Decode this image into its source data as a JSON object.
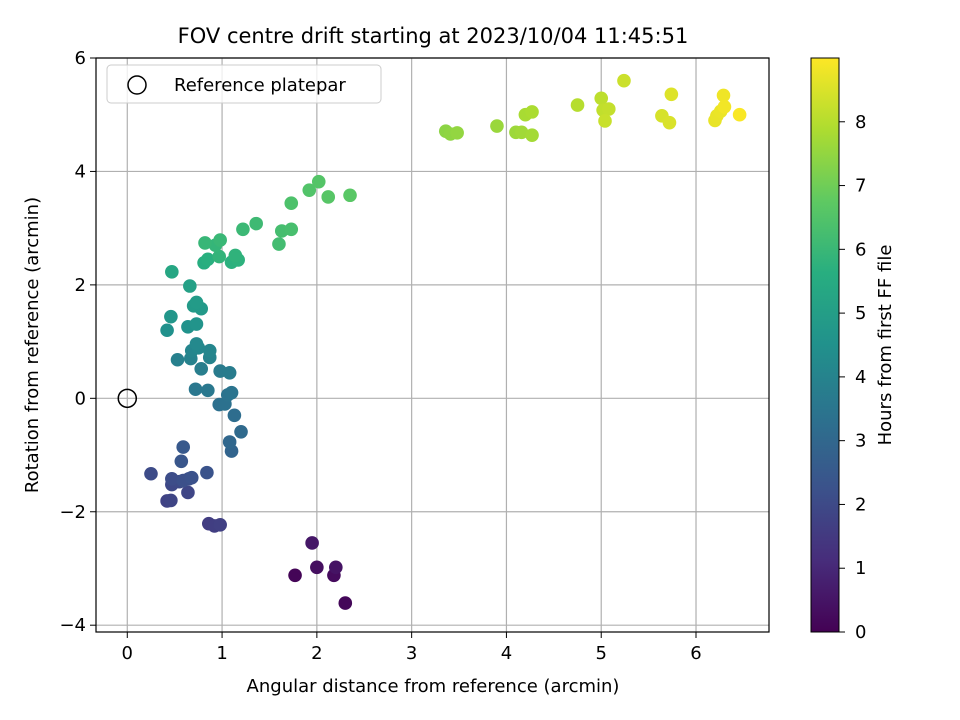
{
  "chart_data": {
    "type": "scatter",
    "title": "FOV centre drift starting at 2023/10/04 11:45:51",
    "xlabel": "Angular distance from reference (arcmin)",
    "ylabel": "Rotation from reference (arcmin)",
    "xlim": [
      -0.33,
      6.77
    ],
    "ylim": [
      -4.12,
      6.0
    ],
    "xticks": [
      0,
      1,
      2,
      3,
      4,
      5,
      6
    ],
    "yticks": [
      -4,
      -2,
      0,
      2,
      4,
      6
    ],
    "xtick_labels": [
      "0",
      "1",
      "2",
      "3",
      "4",
      "5",
      "6"
    ],
    "ytick_labels": [
      "−4",
      "−2",
      "0",
      "2",
      "4",
      "6"
    ],
    "grid": true,
    "colormap": "viridis",
    "colorbar": {
      "label": "Hours from first FF file",
      "range": [
        0,
        9.0
      ],
      "ticks": [
        0,
        1,
        2,
        3,
        4,
        5,
        6,
        7,
        8
      ],
      "tick_labels": [
        "0",
        "1",
        "2",
        "3",
        "4",
        "5",
        "6",
        "7",
        "8"
      ]
    },
    "legend": {
      "location": "top-left",
      "entries": [
        "Reference platepar"
      ]
    },
    "reference_point": {
      "x": 0,
      "y": 0
    },
    "points": [
      {
        "x": 1.77,
        "y": -3.12,
        "t": 0.1
      },
      {
        "x": 2.3,
        "y": -3.61,
        "t": 0.15
      },
      {
        "x": 2.18,
        "y": -3.12,
        "t": 0.25
      },
      {
        "x": 2.0,
        "y": -2.98,
        "t": 0.35
      },
      {
        "x": 2.2,
        "y": -2.98,
        "t": 0.45
      },
      {
        "x": 1.95,
        "y": -2.55,
        "t": 0.55
      },
      {
        "x": 0.86,
        "y": -2.21,
        "t": 1.6
      },
      {
        "x": 0.92,
        "y": -2.25,
        "t": 1.65
      },
      {
        "x": 0.98,
        "y": -2.23,
        "t": 1.7
      },
      {
        "x": 0.42,
        "y": -1.81,
        "t": 1.8
      },
      {
        "x": 0.46,
        "y": -1.8,
        "t": 1.85
      },
      {
        "x": 0.64,
        "y": -1.66,
        "t": 1.9
      },
      {
        "x": 0.47,
        "y": -1.52,
        "t": 1.95
      },
      {
        "x": 0.55,
        "y": -1.47,
        "t": 2.0
      },
      {
        "x": 0.25,
        "y": -1.33,
        "t": 2.05
      },
      {
        "x": 0.47,
        "y": -1.42,
        "t": 2.1
      },
      {
        "x": 0.65,
        "y": -1.42,
        "t": 2.15
      },
      {
        "x": 0.59,
        "y": -1.45,
        "t": 2.2
      },
      {
        "x": 0.68,
        "y": -1.4,
        "t": 2.25
      },
      {
        "x": 0.84,
        "y": -1.31,
        "t": 2.3
      },
      {
        "x": 0.57,
        "y": -1.11,
        "t": 2.4
      },
      {
        "x": 0.59,
        "y": -0.86,
        "t": 2.5
      },
      {
        "x": 1.1,
        "y": -0.93,
        "t": 2.9
      },
      {
        "x": 1.08,
        "y": -0.77,
        "t": 3.0
      },
      {
        "x": 1.2,
        "y": -0.59,
        "t": 3.1
      },
      {
        "x": 1.13,
        "y": -0.3,
        "t": 3.2
      },
      {
        "x": 0.97,
        "y": -0.11,
        "t": 3.3
      },
      {
        "x": 1.03,
        "y": -0.1,
        "t": 3.35
      },
      {
        "x": 1.06,
        "y": 0.06,
        "t": 3.4
      },
      {
        "x": 1.1,
        "y": 0.1,
        "t": 3.45
      },
      {
        "x": 0.72,
        "y": 0.16,
        "t": 3.55
      },
      {
        "x": 0.85,
        "y": 0.14,
        "t": 3.6
      },
      {
        "x": 0.98,
        "y": 0.48,
        "t": 3.7
      },
      {
        "x": 1.08,
        "y": 0.45,
        "t": 3.75
      },
      {
        "x": 0.78,
        "y": 0.52,
        "t": 3.8
      },
      {
        "x": 0.53,
        "y": 0.68,
        "t": 3.9
      },
      {
        "x": 0.67,
        "y": 0.7,
        "t": 3.95
      },
      {
        "x": 0.87,
        "y": 0.72,
        "t": 4.0
      },
      {
        "x": 0.68,
        "y": 0.84,
        "t": 4.05
      },
      {
        "x": 0.87,
        "y": 0.84,
        "t": 4.1
      },
      {
        "x": 0.75,
        "y": 0.89,
        "t": 4.15
      },
      {
        "x": 0.73,
        "y": 0.96,
        "t": 4.2
      },
      {
        "x": 0.42,
        "y": 1.2,
        "t": 4.5
      },
      {
        "x": 0.64,
        "y": 1.26,
        "t": 4.55
      },
      {
        "x": 0.73,
        "y": 1.31,
        "t": 4.6
      },
      {
        "x": 0.46,
        "y": 1.44,
        "t": 4.7
      },
      {
        "x": 0.78,
        "y": 1.58,
        "t": 4.8
      },
      {
        "x": 0.7,
        "y": 1.63,
        "t": 4.85
      },
      {
        "x": 0.73,
        "y": 1.69,
        "t": 4.9
      },
      {
        "x": 0.66,
        "y": 1.98,
        "t": 5.1
      },
      {
        "x": 0.47,
        "y": 2.23,
        "t": 5.3
      },
      {
        "x": 0.81,
        "y": 2.39,
        "t": 5.6
      },
      {
        "x": 0.85,
        "y": 2.45,
        "t": 5.65
      },
      {
        "x": 1.1,
        "y": 2.4,
        "t": 5.7
      },
      {
        "x": 1.17,
        "y": 2.44,
        "t": 5.75
      },
      {
        "x": 1.14,
        "y": 2.52,
        "t": 5.8
      },
      {
        "x": 0.97,
        "y": 2.5,
        "t": 5.85
      },
      {
        "x": 0.93,
        "y": 2.7,
        "t": 5.9
      },
      {
        "x": 0.82,
        "y": 2.74,
        "t": 5.95
      },
      {
        "x": 0.98,
        "y": 2.79,
        "t": 6.0
      },
      {
        "x": 1.22,
        "y": 2.98,
        "t": 6.05
      },
      {
        "x": 1.36,
        "y": 3.08,
        "t": 6.1
      },
      {
        "x": 1.6,
        "y": 2.72,
        "t": 6.2
      },
      {
        "x": 1.63,
        "y": 2.95,
        "t": 6.25
      },
      {
        "x": 1.73,
        "y": 2.98,
        "t": 6.3
      },
      {
        "x": 1.73,
        "y": 3.44,
        "t": 6.4
      },
      {
        "x": 1.92,
        "y": 3.67,
        "t": 6.5
      },
      {
        "x": 2.02,
        "y": 3.82,
        "t": 6.55
      },
      {
        "x": 2.12,
        "y": 3.55,
        "t": 6.6
      },
      {
        "x": 2.35,
        "y": 3.58,
        "t": 6.65
      },
      {
        "x": 3.36,
        "y": 4.71,
        "t": 7.4
      },
      {
        "x": 3.41,
        "y": 4.66,
        "t": 7.45
      },
      {
        "x": 3.48,
        "y": 4.68,
        "t": 7.5
      },
      {
        "x": 3.9,
        "y": 4.8,
        "t": 7.6
      },
      {
        "x": 4.1,
        "y": 4.69,
        "t": 7.65
      },
      {
        "x": 4.16,
        "y": 4.69,
        "t": 7.7
      },
      {
        "x": 4.27,
        "y": 4.64,
        "t": 7.75
      },
      {
        "x": 4.2,
        "y": 5.0,
        "t": 7.8
      },
      {
        "x": 4.27,
        "y": 5.05,
        "t": 7.85
      },
      {
        "x": 4.75,
        "y": 5.17,
        "t": 8.0
      },
      {
        "x": 5.0,
        "y": 5.29,
        "t": 8.1
      },
      {
        "x": 5.02,
        "y": 5.08,
        "t": 8.15
      },
      {
        "x": 5.08,
        "y": 5.1,
        "t": 8.2
      },
      {
        "x": 5.04,
        "y": 4.89,
        "t": 8.25
      },
      {
        "x": 5.24,
        "y": 5.6,
        "t": 8.3
      },
      {
        "x": 5.64,
        "y": 4.98,
        "t": 8.45
      },
      {
        "x": 5.72,
        "y": 4.86,
        "t": 8.5
      },
      {
        "x": 5.74,
        "y": 5.36,
        "t": 8.55
      },
      {
        "x": 6.2,
        "y": 4.9,
        "t": 8.7
      },
      {
        "x": 6.22,
        "y": 4.98,
        "t": 8.72
      },
      {
        "x": 6.26,
        "y": 5.06,
        "t": 8.75
      },
      {
        "x": 6.29,
        "y": 5.34,
        "t": 8.8
      },
      {
        "x": 6.3,
        "y": 5.14,
        "t": 8.85
      },
      {
        "x": 6.46,
        "y": 5.0,
        "t": 8.95
      }
    ]
  }
}
